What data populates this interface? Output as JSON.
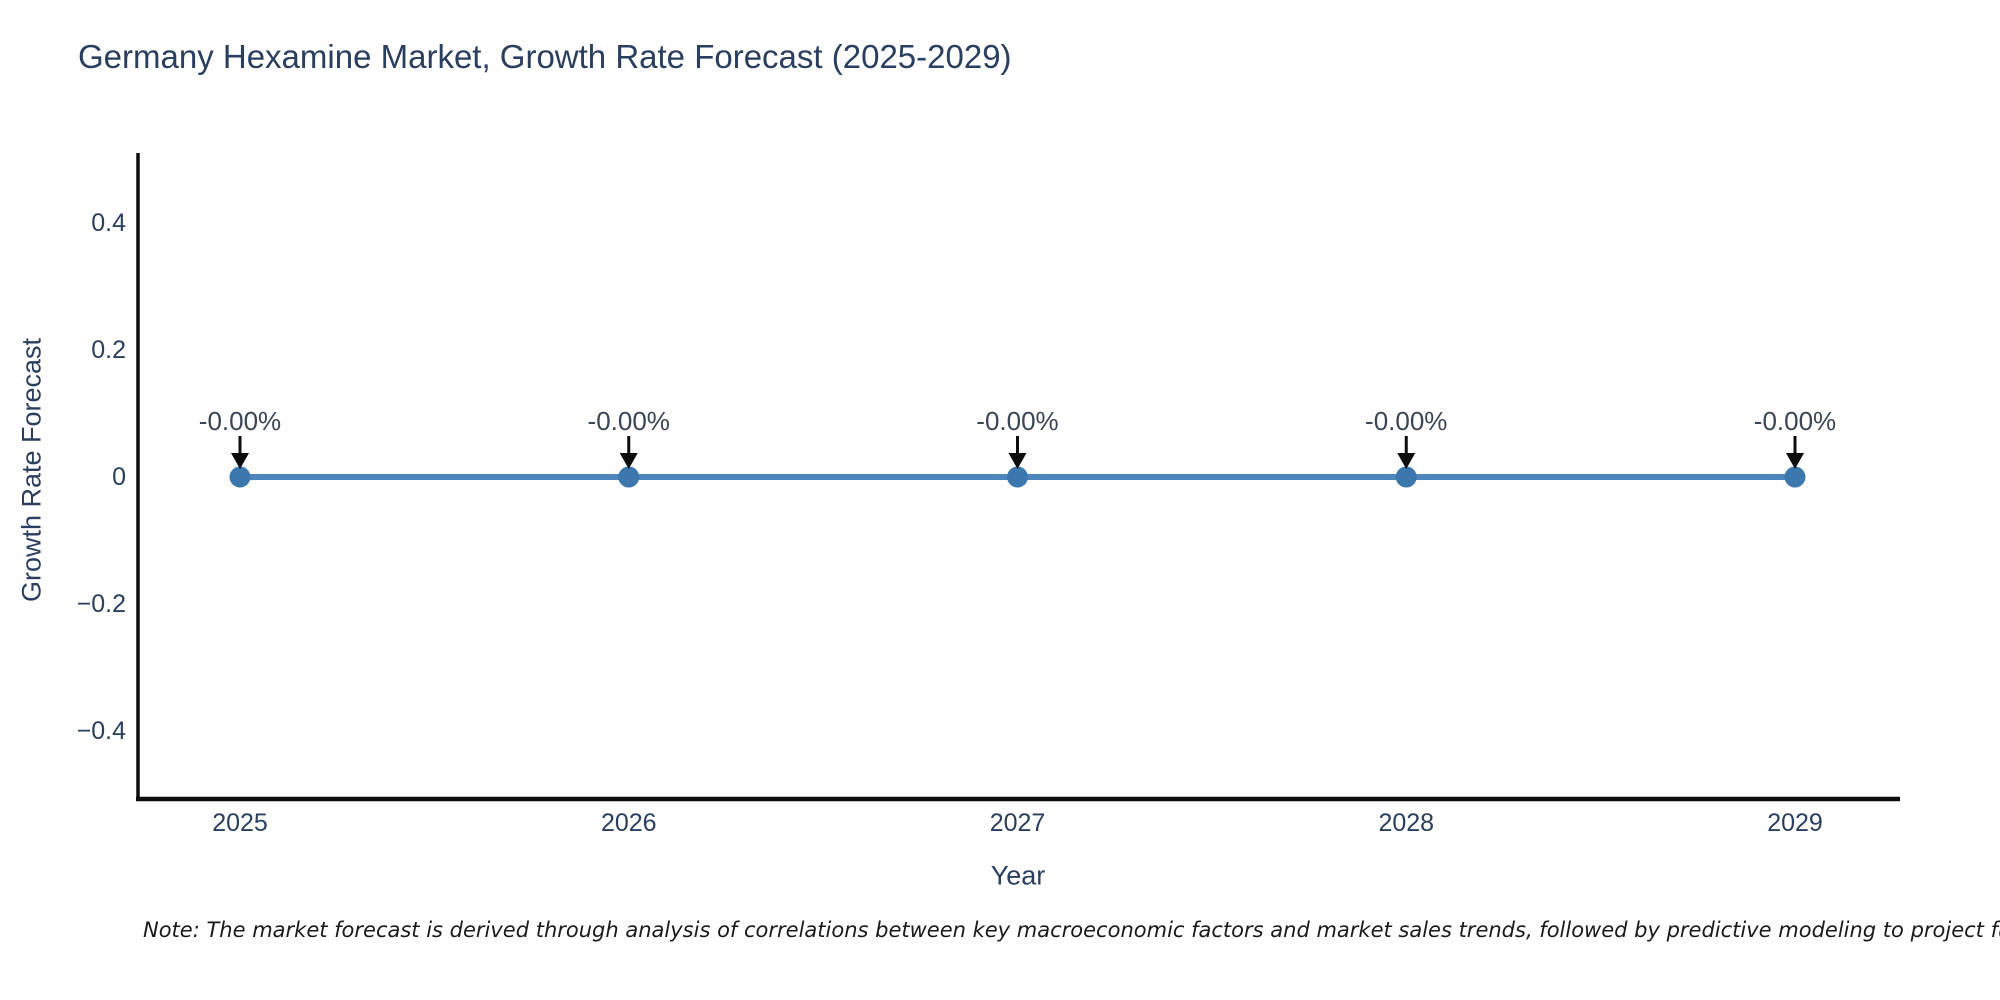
{
  "chart": {
    "title": "Germany Hexamine Market, Growth Rate Forecast (2025-2029)",
    "note": "Note: The market forecast is derived through analysis of correlations between key macroeconomic factors and market sales trends, followed by predictive modeling to project future sa"
  },
  "chart_data": {
    "type": "line",
    "title": "Germany Hexamine Market, Growth Rate Forecast (2025-2029)",
    "xlabel": "Year",
    "ylabel": "Growth Rate Forecast",
    "x": [
      2025,
      2026,
      2027,
      2028,
      2029
    ],
    "values": [
      -0.0,
      -0.0,
      -0.0,
      -0.0,
      -0.0
    ],
    "point_labels": [
      "-0.00%",
      "-0.00%",
      "-0.00%",
      "-0.00%",
      "-0.00%"
    ],
    "x_tick_labels": [
      "2025",
      "2026",
      "2027",
      "2028",
      "2029"
    ],
    "y_ticks": [
      0.4,
      0.2,
      0,
      -0.2,
      -0.4
    ],
    "y_tick_labels": [
      "0.4",
      "0.2",
      "0",
      "−0.2",
      "−0.4"
    ],
    "ylim": [
      -0.5,
      0.5
    ],
    "grid": false,
    "legend": "none",
    "marker_style": "circle",
    "annotation_arrow": "down",
    "colors": {
      "line": "#4d86ba",
      "marker": "#3c77ae",
      "arrow": "#0d0d0d",
      "axis_spine": "#0d0d0d",
      "tick_text": "#2a3f5f",
      "title_text": "#2a3f5f",
      "annotation_text": "#3a4556",
      "note_text": "#1a1a1a"
    }
  }
}
